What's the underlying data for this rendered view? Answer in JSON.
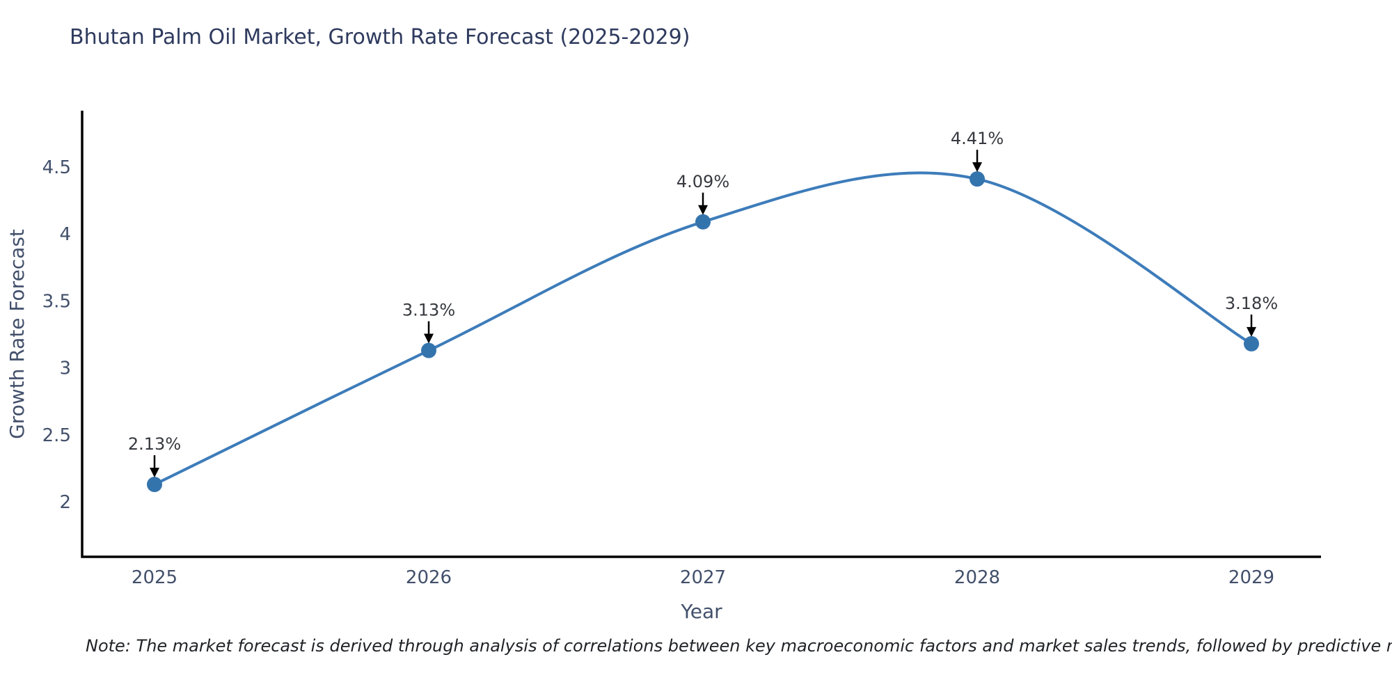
{
  "title": "Bhutan Palm Oil Market, Growth Rate Forecast (2025-2029)",
  "note": "Note: The market forecast is derived through analysis of correlations between key macroeconomic factors and market sales trends, followed by predictive modeling to project future sales",
  "chart_data": {
    "type": "line",
    "title": "Bhutan Palm Oil Market, Growth Rate Forecast (2025-2029)",
    "categories": [
      "2025",
      "2026",
      "2027",
      "2028",
      "2029"
    ],
    "x": [
      2025,
      2026,
      2027,
      2028,
      2029
    ],
    "values": [
      2.13,
      3.13,
      4.09,
      4.41,
      3.18
    ],
    "point_labels": [
      "2.13%",
      "3.13%",
      "4.09%",
      "4.41%",
      "3.18%"
    ],
    "xlabel": "Year",
    "ylabel": "Growth Rate Forecast",
    "yticks": [
      2,
      2.5,
      3,
      3.5,
      4,
      4.5
    ],
    "ylim": [
      1.59,
      4.92
    ],
    "curve": "spline",
    "grid": false,
    "legend": "none",
    "line_color": "#3d7cba",
    "marker_color": "#3474ad",
    "axis_color": "#000000",
    "arrow_color": "#000000"
  }
}
